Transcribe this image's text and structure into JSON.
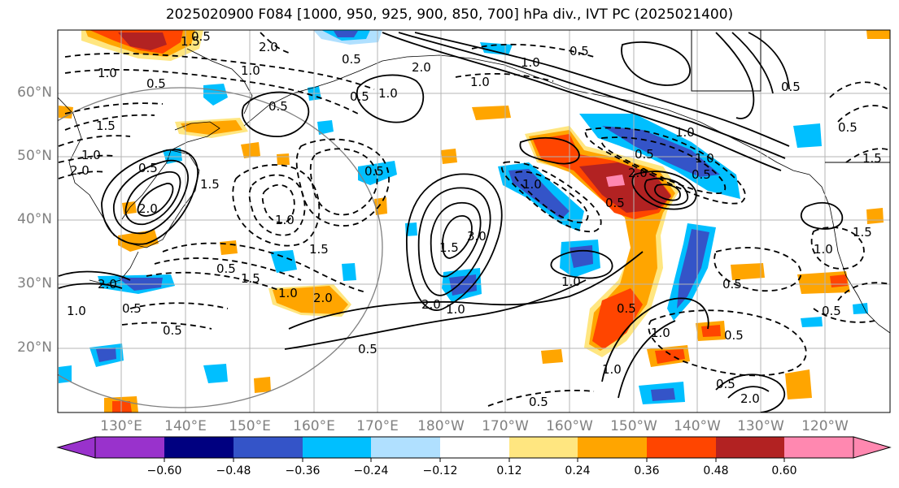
{
  "title": "2025020900 F084 [1000, 950, 925, 900, 850, 700] hPa div., IVT PC (2025021400)",
  "lat_labels": [
    "60°N",
    "50°N",
    "40°N",
    "30°N",
    "20°N"
  ],
  "lon_labels": [
    "130°E",
    "140°E",
    "150°E",
    "160°E",
    "170°E",
    "180°W",
    "170°W",
    "160°W",
    "150°W",
    "140°W",
    "130°W",
    "120°W"
  ],
  "colorbar": {
    "tick_labels": [
      "−0.60",
      "−0.48",
      "−0.36",
      "−0.24",
      "−0.12",
      "0.12",
      "0.24",
      "0.36",
      "0.48",
      "0.60"
    ],
    "colors": [
      "#9932cc",
      "#000080",
      "#3454c8",
      "#00bfff",
      "#b0e0ff",
      "#ffffff",
      "#ffe680",
      "#ffa500",
      "#ff4500",
      "#b22222",
      "#ff88b0"
    ]
  },
  "contour_labels": {
    "c1": "1.0",
    "c2": "0.5",
    "c3": "1.5",
    "c4": "2.0",
    "c5": "1.0",
    "c6": "1.5",
    "c7": "0.5",
    "c8": "0.5",
    "c9": "1.0",
    "c10": "1.5",
    "c11": "2.0",
    "c12": "0.5",
    "c13": "1.0",
    "c14": "0.5",
    "c15": "3.0",
    "c16": "2.0",
    "c17": "1.0",
    "c18": "0.5",
    "c19": "1.0",
    "c20": "0.5",
    "c21": "1.0",
    "c22": "1.0",
    "c23": "0.5",
    "c24": "2.0",
    "c25": "1.0",
    "c26": "0.5",
    "c27": "0.5",
    "c28": "1.0",
    "c29": "0.5",
    "c30": "1.0",
    "c31": "0.5",
    "c32": "1.0",
    "c33": "1.5",
    "c34": "0.5",
    "c35": "2.0",
    "c36": "1.5",
    "c37": "0.5",
    "c38": "0.5",
    "c39": "1.0",
    "c40": "2.0",
    "c41": "1.5",
    "c42": "1.5",
    "c43": "2.0",
    "c44": "0.5",
    "c45": "2.0",
    "c46": "1.0",
    "c47": "1.0",
    "c48": "0.5",
    "c49": "0.5",
    "c50": "1.0",
    "c51": "0.5",
    "c52": "2.0",
    "c53": "0.5",
    "c54": "0.5",
    "c55": "1.5",
    "c56": "0.5",
    "c57": "1.0",
    "c58": "0.5"
  }
}
